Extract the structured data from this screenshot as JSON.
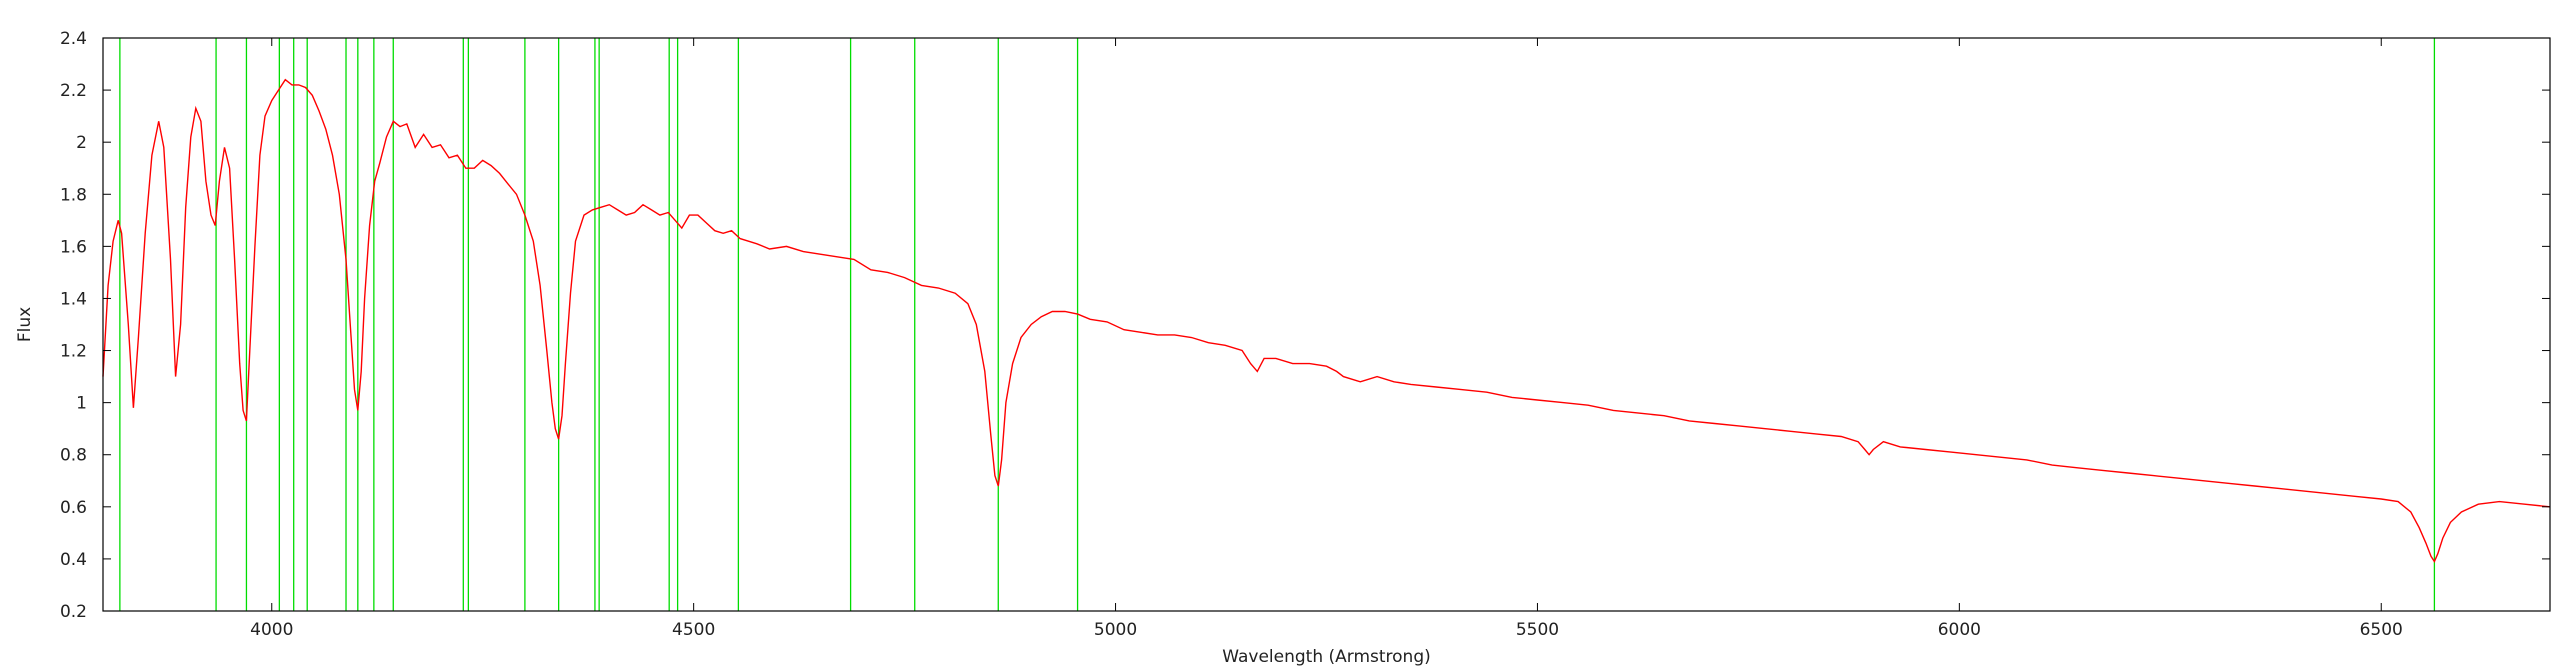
{
  "chart_data": {
    "type": "line",
    "title": "",
    "xlabel": "Wavelength (Armstrong)",
    "ylabel": "Flux",
    "xlim": [
      3800,
      6700
    ],
    "ylim": [
      0.2,
      2.4
    ],
    "x_ticks": [
      4000,
      4500,
      5000,
      5500,
      6000,
      6500
    ],
    "y_ticks": [
      0.2,
      0.4,
      0.6,
      0.8,
      1,
      1.2,
      1.4,
      1.6,
      1.8,
      2,
      2.2,
      2.4
    ],
    "grid": false,
    "legend": "none",
    "colors": {
      "spectrum": "#ff0000",
      "lines": "#00dd00",
      "axis": "#000000"
    },
    "marker_lines": [
      3820,
      3934,
      3970,
      4009,
      4026,
      4042,
      4088,
      4102,
      4121,
      4144,
      4227,
      4233,
      4300,
      4340,
      4383,
      4388,
      4471,
      4481,
      4553,
      4686,
      4762,
      4861,
      4955,
      6563
    ],
    "series": [
      {
        "x": [
          3800,
          3806,
          3812,
          3818,
          3822,
          3830,
          3836,
          3842,
          3850,
          3858,
          3866,
          3872,
          3880,
          3886,
          3892,
          3898,
          3904,
          3910,
          3916,
          3922,
          3928,
          3933,
          3938,
          3944,
          3950,
          3956,
          3962,
          3966,
          3970,
          3974,
          3980,
          3986,
          3992,
          4000,
          4008,
          4016,
          4024,
          4032,
          4040,
          4048,
          4056,
          4064,
          4072,
          4080,
          4088,
          4094,
          4098,
          4102,
          4106,
          4110,
          4116,
          4122,
          4128,
          4136,
          4144,
          4152,
          4160,
          4170,
          4180,
          4190,
          4200,
          4210,
          4220,
          4230,
          4240,
          4250,
          4260,
          4270,
          4280,
          4290,
          4300,
          4310,
          4318,
          4326,
          4332,
          4336,
          4340,
          4344,
          4348,
          4354,
          4360,
          4370,
          4380,
          4390,
          4400,
          4410,
          4420,
          4430,
          4440,
          4450,
          4460,
          4470,
          4478,
          4486,
          4495,
          4505,
          4515,
          4525,
          4535,
          4545,
          4555,
          4565,
          4575,
          4590,
          4610,
          4630,
          4650,
          4670,
          4690,
          4710,
          4730,
          4750,
          4770,
          4790,
          4810,
          4825,
          4835,
          4845,
          4852,
          4857,
          4861,
          4865,
          4870,
          4878,
          4888,
          4900,
          4912,
          4925,
          4940,
          4955,
          4970,
          4990,
          5010,
          5030,
          5050,
          5070,
          5090,
          5110,
          5130,
          5150,
          5160,
          5168,
          5176,
          5190,
          5210,
          5230,
          5250,
          5262,
          5270,
          5290,
          5310,
          5330,
          5350,
          5380,
          5410,
          5440,
          5470,
          5500,
          5530,
          5560,
          5590,
          5620,
          5650,
          5680,
          5710,
          5740,
          5770,
          5800,
          5830,
          5860,
          5880,
          5888,
          5893,
          5898,
          5910,
          5930,
          5960,
          5990,
          6020,
          6050,
          6080,
          6110,
          6140,
          6170,
          6200,
          6230,
          6260,
          6290,
          6320,
          6350,
          6380,
          6410,
          6440,
          6470,
          6500,
          6520,
          6535,
          6545,
          6553,
          6559,
          6563,
          6567,
          6573,
          6582,
          6595,
          6615,
          6640,
          6670,
          6700
        ],
        "y": [
          1.1,
          1.45,
          1.62,
          1.7,
          1.65,
          1.3,
          0.98,
          1.25,
          1.65,
          1.95,
          2.08,
          1.98,
          1.55,
          1.1,
          1.3,
          1.75,
          2.02,
          2.13,
          2.08,
          1.85,
          1.72,
          1.68,
          1.85,
          1.98,
          1.9,
          1.55,
          1.15,
          0.97,
          0.93,
          1.2,
          1.6,
          1.95,
          2.1,
          2.16,
          2.2,
          2.24,
          2.22,
          2.22,
          2.21,
          2.18,
          2.12,
          2.05,
          1.95,
          1.8,
          1.55,
          1.25,
          1.05,
          0.97,
          1.12,
          1.4,
          1.68,
          1.85,
          1.92,
          2.02,
          2.08,
          2.06,
          2.07,
          1.98,
          2.03,
          1.98,
          1.99,
          1.94,
          1.95,
          1.9,
          1.9,
          1.93,
          1.91,
          1.88,
          1.84,
          1.8,
          1.72,
          1.62,
          1.45,
          1.2,
          1.0,
          0.9,
          0.86,
          0.95,
          1.15,
          1.42,
          1.62,
          1.72,
          1.74,
          1.75,
          1.76,
          1.74,
          1.72,
          1.73,
          1.76,
          1.74,
          1.72,
          1.73,
          1.7,
          1.67,
          1.72,
          1.72,
          1.69,
          1.66,
          1.65,
          1.66,
          1.63,
          1.62,
          1.61,
          1.59,
          1.6,
          1.58,
          1.57,
          1.56,
          1.55,
          1.51,
          1.5,
          1.48,
          1.45,
          1.44,
          1.42,
          1.38,
          1.3,
          1.12,
          0.88,
          0.72,
          0.68,
          0.78,
          1.0,
          1.15,
          1.25,
          1.3,
          1.33,
          1.35,
          1.35,
          1.34,
          1.32,
          1.31,
          1.28,
          1.27,
          1.26,
          1.26,
          1.25,
          1.23,
          1.22,
          1.2,
          1.15,
          1.12,
          1.17,
          1.17,
          1.15,
          1.15,
          1.14,
          1.12,
          1.1,
          1.08,
          1.1,
          1.08,
          1.07,
          1.06,
          1.05,
          1.04,
          1.02,
          1.01,
          1.0,
          0.99,
          0.97,
          0.96,
          0.95,
          0.93,
          0.92,
          0.91,
          0.9,
          0.89,
          0.88,
          0.87,
          0.85,
          0.82,
          0.8,
          0.82,
          0.85,
          0.83,
          0.82,
          0.81,
          0.8,
          0.79,
          0.78,
          0.76,
          0.75,
          0.74,
          0.73,
          0.72,
          0.71,
          0.7,
          0.69,
          0.68,
          0.67,
          0.66,
          0.65,
          0.64,
          0.63,
          0.62,
          0.58,
          0.52,
          0.46,
          0.41,
          0.39,
          0.42,
          0.48,
          0.54,
          0.58,
          0.61,
          0.62,
          0.61,
          0.6
        ]
      }
    ]
  }
}
